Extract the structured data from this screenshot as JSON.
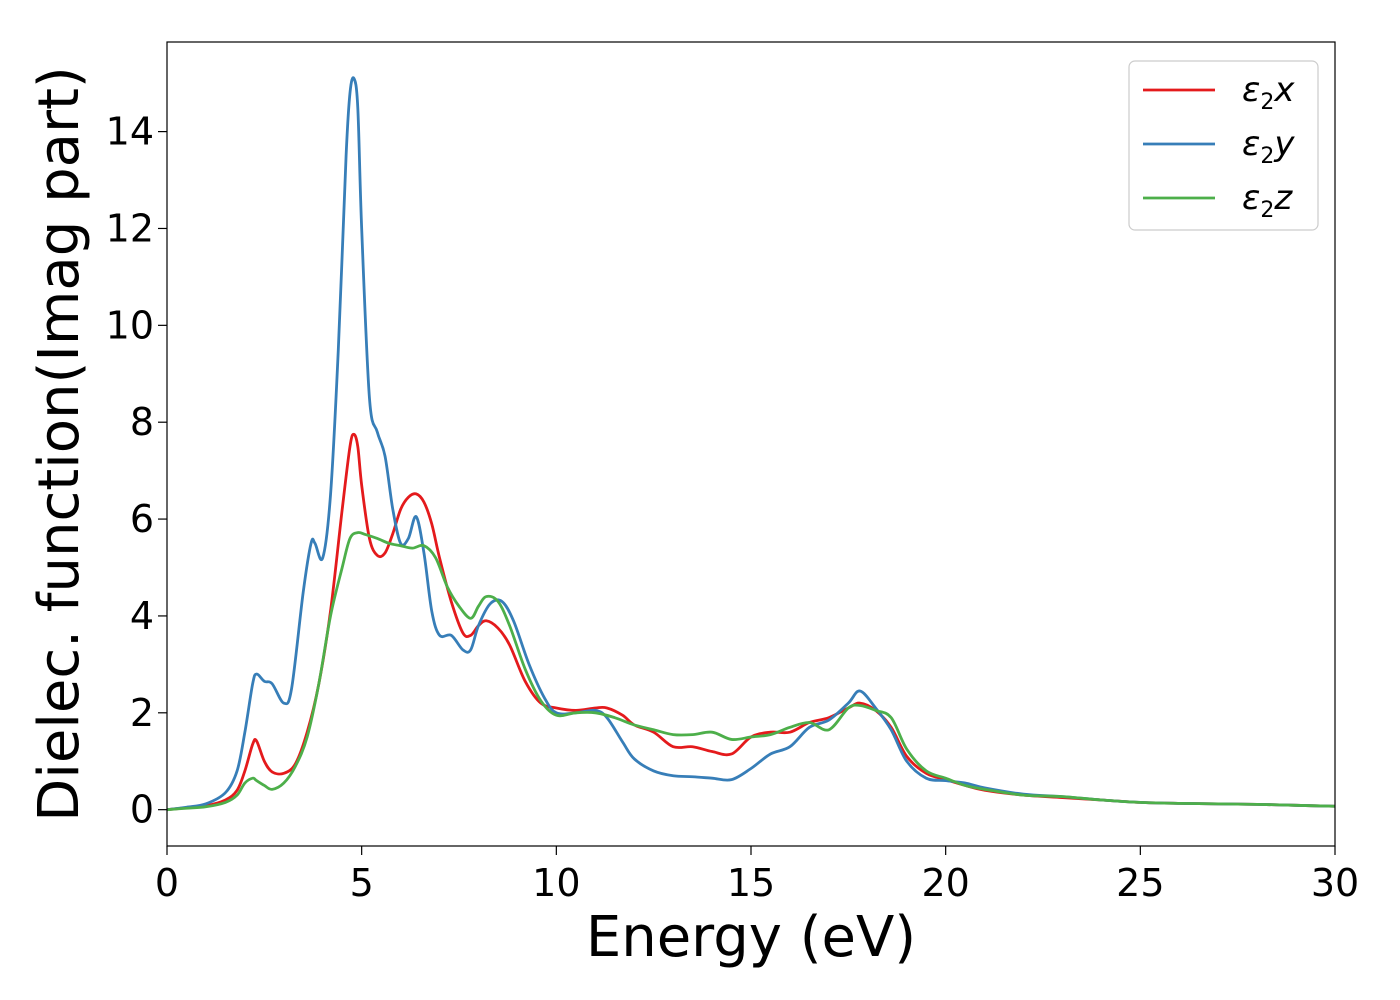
{
  "chart_data": {
    "type": "line",
    "xlabel": "Energy (eV)",
    "ylabel": "Dielec. function(Imag part)",
    "xlim": [
      0,
      30
    ],
    "ylim": [
      -0.75,
      15.85
    ],
    "xticks": [
      0,
      5,
      10,
      15,
      20,
      25,
      30
    ],
    "yticks": [
      0,
      2,
      4,
      6,
      8,
      10,
      12,
      14
    ],
    "grid": false,
    "legend_position": "top-right",
    "series": [
      {
        "name": "ε2x",
        "legend": {
          "base": "ε",
          "sub": "2",
          "suffix": "x"
        },
        "color": "#e41a1c",
        "x": [
          0,
          0.5,
          1.0,
          1.5,
          1.8,
          2.0,
          2.2,
          2.3,
          2.5,
          2.7,
          3.0,
          3.3,
          3.6,
          3.9,
          4.2,
          4.5,
          4.7,
          4.8,
          4.9,
          5.0,
          5.2,
          5.4,
          5.6,
          5.8,
          6.0,
          6.2,
          6.4,
          6.6,
          6.8,
          7.0,
          7.3,
          7.6,
          7.8,
          8.0,
          8.2,
          8.5,
          8.8,
          9.2,
          9.6,
          10.0,
          10.5,
          11.0,
          11.3,
          11.7,
          12.0,
          12.5,
          13.0,
          13.5,
          14.0,
          14.5,
          15.0,
          15.5,
          16.0,
          16.5,
          17.0,
          17.5,
          17.8,
          18.2,
          18.6,
          19.0,
          19.5,
          20.0,
          20.5,
          21.0,
          22.0,
          23.0,
          24.0,
          25.0,
          26.0,
          27.0,
          28.0,
          29.0,
          30.0
        ],
        "y": [
          0.0,
          0.04,
          0.08,
          0.2,
          0.4,
          0.8,
          1.35,
          1.42,
          1.0,
          0.78,
          0.75,
          0.95,
          1.6,
          2.6,
          4.1,
          6.2,
          7.5,
          7.75,
          7.5,
          6.7,
          5.6,
          5.25,
          5.3,
          5.7,
          6.2,
          6.45,
          6.52,
          6.35,
          5.9,
          5.2,
          4.3,
          3.65,
          3.6,
          3.8,
          3.9,
          3.75,
          3.4,
          2.65,
          2.2,
          2.1,
          2.05,
          2.1,
          2.1,
          1.95,
          1.75,
          1.6,
          1.3,
          1.3,
          1.2,
          1.15,
          1.5,
          1.6,
          1.6,
          1.8,
          1.9,
          2.1,
          2.2,
          2.05,
          1.7,
          1.1,
          0.75,
          0.62,
          0.5,
          0.4,
          0.3,
          0.25,
          0.2,
          0.15,
          0.13,
          0.12,
          0.11,
          0.09,
          0.07
        ]
      },
      {
        "name": "ε2y",
        "legend": {
          "base": "ε",
          "sub": "2",
          "suffix": "y"
        },
        "color": "#377eb8",
        "x": [
          0,
          0.5,
          1.0,
          1.5,
          1.8,
          2.0,
          2.2,
          2.3,
          2.5,
          2.7,
          3.0,
          3.2,
          3.5,
          3.7,
          3.8,
          4.0,
          4.2,
          4.4,
          4.6,
          4.7,
          4.8,
          4.9,
          5.0,
          5.2,
          5.4,
          5.6,
          5.8,
          6.0,
          6.2,
          6.4,
          6.6,
          6.8,
          7.0,
          7.3,
          7.6,
          7.8,
          8.0,
          8.3,
          8.6,
          8.9,
          9.3,
          9.7,
          10.0,
          10.5,
          11.0,
          11.3,
          11.7,
          12.0,
          12.5,
          13.0,
          13.5,
          14.0,
          14.5,
          15.0,
          15.5,
          16.0,
          16.5,
          17.0,
          17.5,
          17.8,
          18.2,
          18.6,
          19.0,
          19.5,
          20.0,
          20.5,
          21.0,
          22.0,
          23.0,
          24.0,
          25.0,
          26.0,
          27.0,
          28.0,
          29.0,
          30.0
        ],
        "y": [
          0.0,
          0.05,
          0.12,
          0.35,
          0.8,
          1.6,
          2.6,
          2.8,
          2.65,
          2.6,
          2.2,
          2.5,
          4.5,
          5.5,
          5.5,
          5.2,
          6.5,
          9.5,
          13.5,
          14.8,
          15.1,
          14.5,
          12.0,
          8.5,
          7.8,
          7.3,
          6.2,
          5.5,
          5.6,
          6.05,
          5.3,
          4.1,
          3.6,
          3.6,
          3.3,
          3.3,
          3.8,
          4.25,
          4.3,
          3.9,
          3.0,
          2.3,
          2.0,
          2.0,
          2.05,
          1.9,
          1.4,
          1.05,
          0.8,
          0.7,
          0.68,
          0.65,
          0.62,
          0.85,
          1.15,
          1.3,
          1.7,
          1.85,
          2.2,
          2.45,
          2.1,
          1.65,
          1.0,
          0.65,
          0.6,
          0.55,
          0.45,
          0.32,
          0.27,
          0.2,
          0.15,
          0.13,
          0.12,
          0.11,
          0.09,
          0.07
        ]
      },
      {
        "name": "ε2z",
        "legend": {
          "base": "ε",
          "sub": "2",
          "suffix": "z"
        },
        "color": "#4daf4a",
        "x": [
          0,
          0.5,
          1.0,
          1.5,
          1.8,
          2.0,
          2.2,
          2.3,
          2.5,
          2.7,
          3.0,
          3.3,
          3.6,
          3.9,
          4.2,
          4.5,
          4.7,
          4.9,
          5.1,
          5.4,
          5.7,
          6.0,
          6.3,
          6.6,
          6.9,
          7.2,
          7.5,
          7.8,
          8.0,
          8.2,
          8.5,
          8.8,
          9.2,
          9.6,
          10.0,
          10.5,
          11.0,
          11.5,
          12.0,
          12.5,
          13.0,
          13.5,
          14.0,
          14.5,
          15.0,
          15.5,
          16.0,
          16.5,
          17.0,
          17.5,
          17.8,
          18.2,
          18.6,
          19.0,
          19.5,
          20.0,
          20.5,
          21.0,
          22.0,
          23.0,
          24.0,
          25.0,
          26.0,
          27.0,
          28.0,
          29.0,
          30.0
        ],
        "y": [
          0.0,
          0.03,
          0.06,
          0.15,
          0.3,
          0.55,
          0.65,
          0.6,
          0.5,
          0.42,
          0.55,
          0.9,
          1.5,
          2.6,
          4.0,
          5.0,
          5.6,
          5.72,
          5.68,
          5.6,
          5.5,
          5.45,
          5.4,
          5.45,
          5.2,
          4.6,
          4.2,
          3.95,
          4.2,
          4.4,
          4.3,
          3.8,
          2.9,
          2.25,
          1.95,
          2.0,
          2.0,
          1.9,
          1.75,
          1.65,
          1.55,
          1.55,
          1.6,
          1.45,
          1.5,
          1.55,
          1.7,
          1.8,
          1.65,
          2.1,
          2.15,
          2.05,
          1.9,
          1.25,
          0.8,
          0.65,
          0.5,
          0.42,
          0.3,
          0.27,
          0.2,
          0.15,
          0.13,
          0.12,
          0.11,
          0.09,
          0.07
        ]
      }
    ]
  }
}
